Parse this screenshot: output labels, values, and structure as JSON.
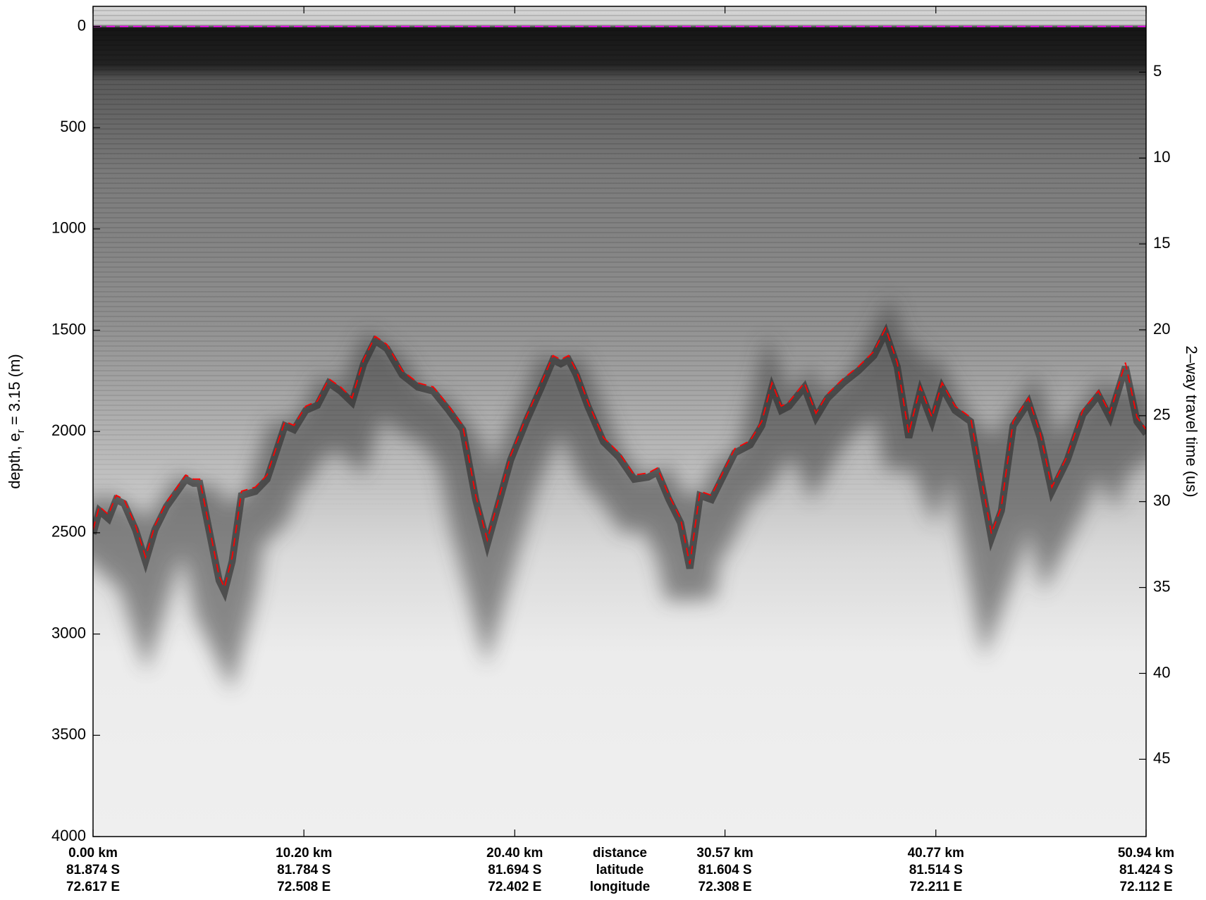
{
  "chart_data": {
    "type": "line",
    "xlim": [
      0,
      50.94
    ],
    "xticks": [
      {
        "value": 0,
        "label": "0.00 km"
      },
      {
        "value": 10.2,
        "label": "10.20 km"
      },
      {
        "value": 20.4,
        "label": "20.40 km"
      },
      {
        "value": 30.57,
        "label": "30.57 km"
      },
      {
        "value": 40.77,
        "label": "40.77 km"
      },
      {
        "value": 50.94,
        "label": "50.94 km"
      }
    ],
    "latitude_labels": [
      "81.874 S",
      "81.784 S",
      "81.694 S",
      "81.604 S",
      "81.514 S",
      "81.424 S"
    ],
    "longitude_labels": [
      "72.617 E",
      "72.508 E",
      "72.402 E",
      "72.308 E",
      "72.211 E",
      "72.112 E"
    ],
    "row_labels": [
      "distance",
      "latitude",
      "longitude"
    ],
    "ylim": [
      4000,
      -99
    ],
    "yticks": [
      0,
      500,
      1000,
      1500,
      2000,
      2500,
      3000,
      3500,
      4000
    ],
    "ylabel": [
      "depth, e",
      "r",
      " = 3.15 (m)"
    ],
    "y2lim": [
      49.5,
      1.17
    ],
    "y2ticks": [
      5,
      10,
      15,
      20,
      25,
      30,
      35,
      40,
      45
    ],
    "y2label": "2–way travel time (us)",
    "series": [
      {
        "color": "#ff00ff",
        "x": [
          0,
          50.94
        ],
        "values": [
          0,
          0
        ]
      },
      {
        "color": "#ff0000",
        "x": [
          0,
          0.3,
          0.75,
          1.12,
          1.5,
          2.06,
          2.54,
          2.99,
          3.55,
          4.49,
          4.86,
          5.16,
          5.61,
          6.1,
          6.36,
          6.73,
          7.18,
          7.85,
          8.42,
          9.28,
          9.72,
          10.29,
          10.85,
          11.41,
          11.97,
          12.53,
          13.09,
          13.65,
          14.21,
          14.96,
          15.71,
          16.46,
          17.21,
          17.88,
          18.51,
          19.07,
          19.63,
          20.2,
          20.95,
          21.69,
          22.25,
          22.63,
          23.0,
          23.38,
          23.94,
          24.69,
          25.44,
          26.18,
          26.85,
          27.3,
          27.86,
          28.42,
          28.87,
          29.36,
          29.92,
          30.48,
          31.04,
          31.79,
          32.35,
          32.84,
          33.29,
          33.66,
          34.41,
          34.97,
          35.53,
          36.28,
          37.02,
          37.77,
          38.34,
          38.9,
          39.46,
          40.02,
          40.58,
          41.07,
          41.7,
          42.45,
          42.94,
          43.46,
          43.94,
          44.51,
          45.25,
          45.82,
          46.38,
          47.13,
          47.88,
          48.63,
          49.19,
          49.94,
          50.5,
          50.94
        ],
        "values": [
          2485,
          2370,
          2410,
          2315,
          2335,
          2465,
          2620,
          2465,
          2350,
          2215,
          2235,
          2235,
          2465,
          2715,
          2770,
          2620,
          2295,
          2275,
          2215,
          1950,
          1970,
          1875,
          1850,
          1740,
          1780,
          1835,
          1645,
          1530,
          1570,
          1700,
          1760,
          1780,
          1875,
          1970,
          2315,
          2535,
          2330,
          2120,
          1930,
          1760,
          1625,
          1645,
          1625,
          1700,
          1855,
          2030,
          2105,
          2215,
          2205,
          2180,
          2315,
          2430,
          2655,
          2295,
          2315,
          2200,
          2085,
          2045,
          1950,
          1760,
          1875,
          1855,
          1760,
          1910,
          1815,
          1740,
          1680,
          1605,
          1490,
          1660,
          2010,
          1780,
          1930,
          1760,
          1875,
          1930,
          2215,
          2505,
          2370,
          1950,
          1835,
          2010,
          2275,
          2120,
          1895,
          1800,
          1910,
          1660,
          1930,
          1990
        ]
      }
    ]
  }
}
